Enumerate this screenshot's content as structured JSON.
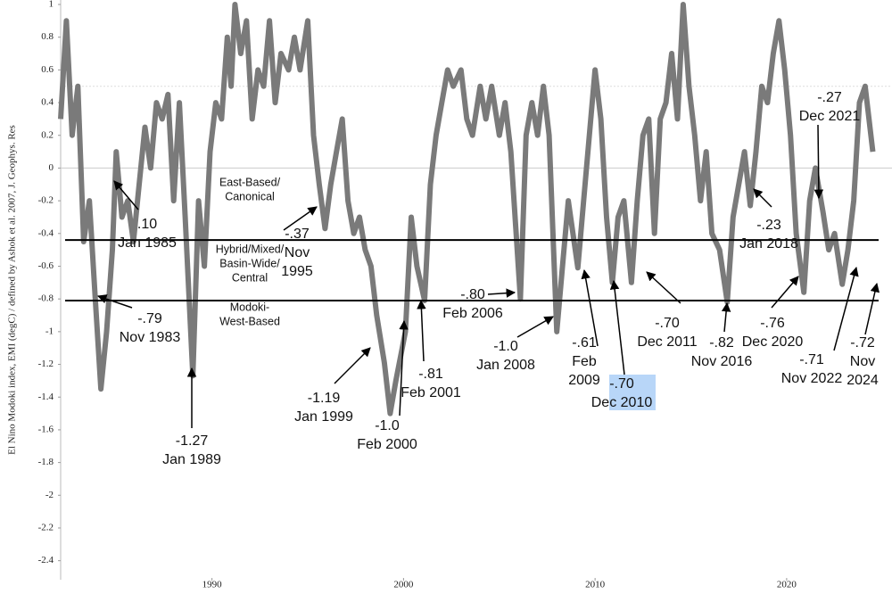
{
  "chart_data": {
    "type": "line",
    "ylabel": "El Nino Modoki index, EMI (degC) / defined by Ashok et al. 2007, J. Geophys. Res",
    "x": [
      1982.1,
      1982.4,
      1982.7,
      1983.0,
      1983.3,
      1983.6,
      1983.9,
      1984.2,
      1984.5,
      1984.8,
      1985.0,
      1985.3,
      1985.6,
      1985.9,
      1986.2,
      1986.5,
      1986.8,
      1987.1,
      1987.4,
      1987.7,
      1988.0,
      1988.3,
      1988.6,
      1989.0,
      1989.3,
      1989.6,
      1989.9,
      1990.2,
      1990.5,
      1990.8,
      1991.0,
      1991.2,
      1991.5,
      1991.8,
      1992.1,
      1992.4,
      1992.7,
      1993.0,
      1993.3,
      1993.6,
      1994.0,
      1994.3,
      1994.6,
      1995.0,
      1995.3,
      1995.6,
      1995.9,
      1996.2,
      1996.5,
      1996.8,
      1997.1,
      1997.4,
      1997.7,
      1998.0,
      1998.3,
      1998.6,
      1999.0,
      1999.3,
      1999.6,
      2000.1,
      2000.4,
      2000.7,
      2001.1,
      2001.4,
      2001.7,
      2002.0,
      2002.3,
      2002.6,
      2003.0,
      2003.3,
      2003.6,
      2004.0,
      2004.3,
      2004.6,
      2005.0,
      2005.3,
      2005.6,
      2006.1,
      2006.4,
      2006.7,
      2007.0,
      2007.3,
      2007.6,
      2008.0,
      2008.3,
      2008.6,
      2009.1,
      2009.4,
      2009.7,
      2010.0,
      2010.3,
      2010.6,
      2010.9,
      2011.2,
      2011.5,
      2011.9,
      2012.2,
      2012.5,
      2012.8,
      2013.1,
      2013.4,
      2013.7,
      2014.0,
      2014.3,
      2014.6,
      2014.9,
      2015.2,
      2015.5,
      2015.8,
      2016.1,
      2016.5,
      2016.9,
      2017.2,
      2017.5,
      2017.8,
      2018.1,
      2018.4,
      2018.7,
      2019.0,
      2019.3,
      2019.6,
      2019.9,
      2020.2,
      2020.5,
      2020.9,
      2021.2,
      2021.5,
      2021.9,
      2022.2,
      2022.5,
      2022.9,
      2023.2,
      2023.5,
      2023.8,
      2024.1,
      2024.5
    ],
    "values": [
      0.3,
      0.9,
      0.2,
      0.5,
      -0.45,
      -0.2,
      -0.79,
      -1.35,
      -1.0,
      -0.5,
      0.1,
      -0.3,
      -0.2,
      -0.45,
      -0.1,
      0.25,
      0.0,
      0.4,
      0.3,
      0.45,
      -0.2,
      0.4,
      -0.3,
      -1.27,
      -0.2,
      -0.6,
      0.1,
      0.4,
      0.3,
      0.8,
      0.5,
      1.0,
      0.7,
      0.9,
      0.3,
      0.6,
      0.5,
      0.9,
      0.4,
      0.7,
      0.6,
      0.8,
      0.6,
      0.9,
      0.2,
      -0.1,
      -0.37,
      -0.1,
      0.1,
      0.3,
      -0.2,
      -0.4,
      -0.3,
      -0.5,
      -0.6,
      -0.9,
      -1.19,
      -1.5,
      -1.3,
      -1.0,
      -0.3,
      -0.6,
      -0.81,
      -0.1,
      0.2,
      0.4,
      0.6,
      0.5,
      0.6,
      0.3,
      0.2,
      0.5,
      0.3,
      0.5,
      0.2,
      0.4,
      0.1,
      -0.8,
      0.2,
      0.4,
      0.2,
      0.5,
      0.2,
      -1.0,
      -0.6,
      -0.2,
      -0.61,
      -0.2,
      0.2,
      0.6,
      0.3,
      -0.3,
      -0.7,
      -0.3,
      -0.2,
      -0.7,
      -0.2,
      0.2,
      0.3,
      -0.4,
      0.3,
      0.4,
      0.7,
      0.3,
      1.0,
      0.5,
      0.2,
      -0.2,
      0.1,
      -0.4,
      -0.5,
      -0.82,
      -0.3,
      -0.1,
      0.1,
      -0.23,
      0.1,
      0.5,
      0.4,
      0.7,
      0.9,
      0.6,
      0.2,
      -0.4,
      -0.76,
      -0.2,
      0.0,
      -0.27,
      -0.5,
      -0.4,
      -0.71,
      -0.5,
      -0.2,
      0.4,
      0.5,
      0.1
    ],
    "color": "#7a7a7a",
    "xlim": [
      1982.1,
      2025.5
    ],
    "ylim": [
      -2.5,
      1
    ],
    "xticks": [
      1990,
      2000,
      2010,
      2020
    ],
    "yticks": [
      1,
      0.8,
      0.6,
      0.4,
      0.2,
      0,
      -0.2,
      -0.4,
      -0.6,
      -0.8,
      -1,
      -1.2,
      -1.4,
      -1.6,
      -1.8,
      -2,
      -2.2,
      -2.4
    ],
    "thresholds": [
      -0.44,
      -0.81
    ],
    "regions": [
      {
        "lines": [
          "East-Based/",
          "Canonical"
        ]
      },
      {
        "lines": [
          "Hybrid/Mixed/",
          "Basin-Wide/",
          "Central"
        ]
      },
      {
        "lines": [
          "Modoki-",
          "West-Based"
        ]
      }
    ],
    "annotations": [
      {
        "lines": [
          ".10",
          "Jan 1985"
        ]
      },
      {
        "lines": [
          "-.79",
          "Nov 1983"
        ]
      },
      {
        "lines": [
          "-1.27",
          "Jan 1989"
        ]
      },
      {
        "lines": [
          "-.37",
          "Nov",
          "1995"
        ]
      },
      {
        "lines": [
          "-1.19",
          "Jan 1999"
        ]
      },
      {
        "lines": [
          "-1.0",
          "Feb 2000"
        ]
      },
      {
        "lines": [
          "-.81",
          "Feb 2001"
        ]
      },
      {
        "lines": [
          "-.80",
          "Feb 2006"
        ]
      },
      {
        "lines": [
          "-1.0",
          "Jan 2008"
        ]
      },
      {
        "lines": [
          "-.61",
          "Feb",
          "2009"
        ]
      },
      {
        "lines": [
          "-.70",
          "Dec 2010"
        ],
        "highlight": true
      },
      {
        "lines": [
          "-.70",
          "Dec 2011"
        ]
      },
      {
        "lines": [
          "-.82",
          "Nov 2016"
        ]
      },
      {
        "lines": [
          "-.76",
          "Dec 2020"
        ]
      },
      {
        "lines": [
          "-.23",
          "Jan 2018"
        ]
      },
      {
        "lines": [
          "-.27",
          "Dec 2021"
        ]
      },
      {
        "lines": [
          "-.71",
          "Nov 2022"
        ]
      },
      {
        "lines": [
          "-.72",
          "Nov",
          "2024"
        ]
      }
    ]
  }
}
